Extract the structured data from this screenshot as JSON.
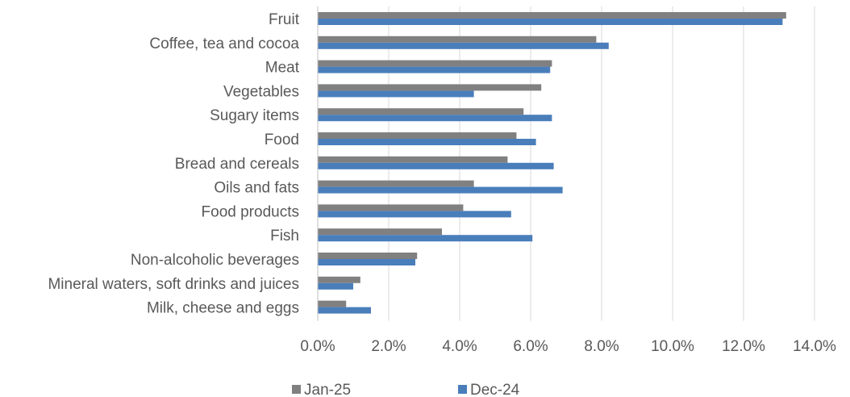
{
  "chart_data": {
    "type": "bar",
    "orientation": "horizontal",
    "categories": [
      "Fruit",
      "Coffee, tea and cocoa",
      "Meat",
      "Vegetables",
      "Sugary items",
      "Food",
      "Bread and cereals",
      "Oils and fats",
      "Food products",
      "Fish",
      "Non-alcoholic beverages",
      "Mineral waters, soft drinks and juices",
      "Milk, cheese and eggs"
    ],
    "series": [
      {
        "name": "Jan-25",
        "color": "#808080",
        "values": [
          13.2,
          7.85,
          6.6,
          6.3,
          5.8,
          5.6,
          5.35,
          4.4,
          4.1,
          3.5,
          2.8,
          1.2,
          0.8
        ]
      },
      {
        "name": "Dec-24",
        "color": "#4a7ebb",
        "values": [
          13.1,
          8.2,
          6.55,
          4.4,
          6.6,
          6.15,
          6.65,
          6.9,
          5.45,
          6.05,
          2.75,
          1.0,
          1.5
        ]
      }
    ],
    "xlim": [
      0,
      14
    ],
    "x_ticks": [
      "0.0%",
      "2.0%",
      "4.0%",
      "6.0%",
      "8.0%",
      "10.0%",
      "12.0%",
      "14.0%"
    ],
    "grid": true,
    "legend_position": "bottom",
    "title": "",
    "xlabel": "",
    "ylabel": ""
  }
}
